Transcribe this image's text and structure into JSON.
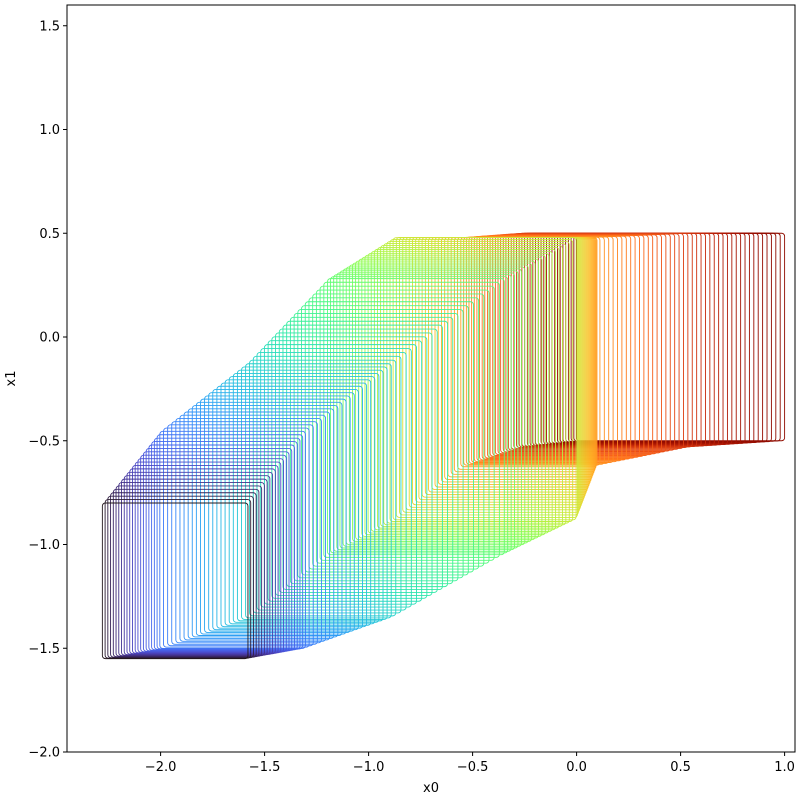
{
  "chart_data": {
    "type": "line",
    "title": "",
    "xlabel": "x0",
    "ylabel": "x1",
    "xlim": [
      -2.45,
      1.05
    ],
    "ylim": [
      -2.0,
      1.6
    ],
    "xticks": [
      -2.0,
      -1.5,
      -1.0,
      -0.5,
      0.0,
      0.5,
      1.0
    ],
    "xtick_labels": [
      "−2.0",
      "−1.5",
      "−1.0",
      "−0.5",
      "0.0",
      "0.5",
      "1.0"
    ],
    "yticks": [
      -2.0,
      -1.5,
      -1.0,
      -0.5,
      0.0,
      0.5,
      1.0,
      1.5
    ],
    "ytick_labels": [
      "−2.0",
      "−1.5",
      "−1.0",
      "−0.5",
      "0.0",
      "0.5",
      "1.0",
      "1.5"
    ],
    "grid": false,
    "legend": "none",
    "colormap": "turbo",
    "colormap_reversed": true,
    "series_count": 150,
    "path": {
      "description_type": "sequence of rectangles [xmin,xmax]×[ymin,ymax] sweeping along an arc",
      "start_box": {
        "x": [
          0.0,
          1.0
        ],
        "y": [
          -0.5,
          0.5
        ]
      },
      "mid_box": {
        "x": [
          -0.88,
          0.0
        ],
        "y": [
          -0.88,
          0.48
        ]
      },
      "end_box": {
        "x": [
          -2.28,
          -1.58
        ],
        "y": [
          -1.55,
          -0.8
        ]
      },
      "key_boxes": [
        {
          "x": [
            0.0,
            1.0
          ],
          "y": [
            -0.5,
            0.5
          ]
        },
        {
          "x": [
            -0.28,
            0.55
          ],
          "y": [
            -0.53,
            0.5
          ]
        },
        {
          "x": [
            -0.55,
            0.1
          ],
          "y": [
            -0.62,
            0.48
          ]
        },
        {
          "x": [
            -0.88,
            0.0
          ],
          "y": [
            -0.88,
            0.48
          ]
        },
        {
          "x": [
            -1.2,
            -0.35
          ],
          "y": [
            -1.05,
            0.28
          ]
        },
        {
          "x": [
            -1.58,
            -0.88
          ],
          "y": [
            -1.35,
            -0.12
          ]
        },
        {
          "x": [
            -2.0,
            -1.3
          ],
          "y": [
            -1.5,
            -0.45
          ]
        },
        {
          "x": [
            -2.28,
            -1.58
          ],
          "y": [
            -1.55,
            -0.8
          ]
        }
      ]
    }
  }
}
